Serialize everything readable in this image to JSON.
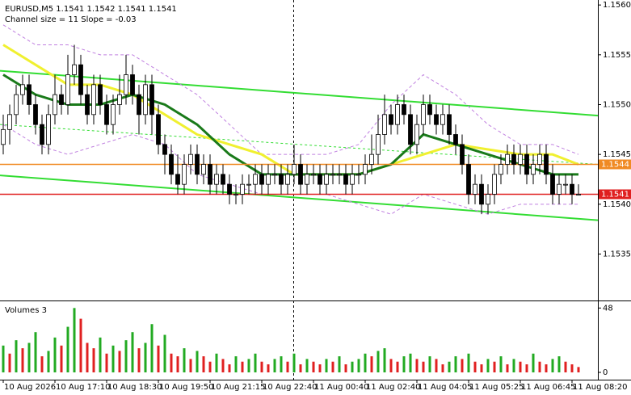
{
  "chart_data": {
    "type": "candlestick",
    "title": "EURUSD,M5  1.1541 1.1542 1.1541 1.1541",
    "subtitle": "Channel size = 11 Slope = -0.03",
    "categories": [
      "10 Aug 2026",
      null,
      null,
      null,
      null,
      null,
      null,
      null,
      "10 Aug 17:10",
      null,
      null,
      null,
      null,
      null,
      null,
      null,
      "10 Aug 18:30",
      null,
      null,
      null,
      null,
      null,
      null,
      null,
      "10 Aug 19:50",
      null,
      null,
      null,
      null,
      null,
      null,
      null,
      "10 Aug 21:15",
      null,
      null,
      null,
      null,
      null,
      null,
      null,
      "10 Aug 22:40",
      null,
      null,
      null,
      null,
      null,
      null,
      null,
      "11 Aug 00:40",
      null,
      null,
      null,
      null,
      null,
      null,
      null,
      "11 Aug 02:40",
      null,
      null,
      null,
      null,
      null,
      null,
      null,
      "11 Aug 04:05",
      null,
      null,
      null,
      null,
      null,
      null,
      null,
      "11 Aug 05:25",
      null,
      null,
      null,
      null,
      null,
      null,
      null,
      "11 Aug 06:45",
      null,
      null,
      null,
      null,
      null,
      null,
      null,
      "11 Aug 08:20",
      null
    ],
    "open": [
      1.1546,
      1.15475,
      1.1549,
      1.1551,
      1.1552,
      1.155,
      1.1548,
      1.1546,
      1.1549,
      1.1551,
      1.155,
      1.1553,
      1.1554,
      1.1551,
      1.1549,
      1.1552,
      1.155,
      1.1548,
      1.155,
      1.1551,
      1.1553,
      1.1551,
      1.1549,
      1.1552,
      1.1549,
      1.1546,
      1.1545,
      1.1543,
      1.1542,
      1.1544,
      1.1545,
      1.1543,
      1.1544,
      1.1542,
      1.1543,
      1.1542,
      1.1541,
      1.1541,
      1.1542,
      1.1542,
      1.1543,
      1.1542,
      1.1543,
      1.1543,
      1.1542,
      1.1543,
      1.1544,
      1.1542,
      1.1543,
      1.1543,
      1.1542,
      1.1543,
      1.1543,
      1.1543,
      1.1542,
      1.1543,
      1.1543,
      1.1544,
      1.1545,
      1.1547,
      1.1549,
      1.1548,
      1.155,
      1.1549,
      1.1546,
      1.1548,
      1.155,
      1.1549,
      1.1548,
      1.1549,
      1.1547,
      1.1546,
      1.1544,
      1.1541,
      1.1542,
      1.154,
      1.1541,
      1.1543,
      1.1544,
      1.1545,
      1.1544,
      1.1545,
      1.1543,
      1.1544,
      1.1545,
      1.1543,
      1.1541,
      1.1542,
      1.1542,
      1.1541
    ],
    "high": [
      1.1549,
      1.155,
      1.1552,
      1.1553,
      1.1553,
      1.1551,
      1.1549,
      1.155,
      1.1553,
      1.1552,
      1.1555,
      1.1556,
      1.1555,
      1.1552,
      1.1553,
      1.1553,
      1.1551,
      1.1551,
      1.1553,
      1.1555,
      1.1554,
      1.1552,
      1.1553,
      1.1553,
      1.155,
      1.1547,
      1.1546,
      1.1545,
      1.1545,
      1.1546,
      1.1546,
      1.1545,
      1.1545,
      1.1544,
      1.1544,
      1.1543,
      1.1542,
      1.1543,
      1.1543,
      1.1544,
      1.1544,
      1.1544,
      1.1544,
      1.1544,
      1.1544,
      1.1546,
      1.1545,
      1.1544,
      1.1544,
      1.1544,
      1.1544,
      1.1544,
      1.1544,
      1.1544,
      1.1544,
      1.1544,
      1.1545,
      1.1547,
      1.1549,
      1.1551,
      1.155,
      1.1551,
      1.1551,
      1.155,
      1.1549,
      1.1551,
      1.1551,
      1.155,
      1.155,
      1.155,
      1.1548,
      1.1547,
      1.1545,
      1.1543,
      1.1543,
      1.1542,
      1.1544,
      1.1545,
      1.1546,
      1.1546,
      1.1546,
      1.1546,
      1.1545,
      1.1546,
      1.1546,
      1.1544,
      1.1543,
      1.1543,
      1.1543,
      1.1542
    ],
    "low": [
      1.1545,
      1.1546,
      1.1548,
      1.155,
      1.1549,
      1.1547,
      1.1545,
      1.1545,
      1.1548,
      1.1549,
      1.1549,
      1.1552,
      1.155,
      1.1548,
      1.1548,
      1.1549,
      1.1547,
      1.1547,
      1.1549,
      1.155,
      1.155,
      1.1547,
      1.1548,
      1.1547,
      1.1545,
      1.1543,
      1.1542,
      1.1541,
      1.1541,
      1.1543,
      1.1542,
      1.1542,
      1.1541,
      1.1541,
      1.1541,
      1.154,
      1.154,
      1.154,
      1.1541,
      1.1541,
      1.1541,
      1.1541,
      1.1542,
      1.1541,
      1.1541,
      1.1542,
      1.1541,
      1.1541,
      1.1542,
      1.1541,
      1.1541,
      1.1542,
      1.1542,
      1.1541,
      1.1541,
      1.1542,
      1.1542,
      1.1543,
      1.1544,
      1.1546,
      1.1547,
      1.1547,
      1.1548,
      1.1545,
      1.1545,
      1.1547,
      1.1548,
      1.1547,
      1.1547,
      1.1546,
      1.1545,
      1.1543,
      1.154,
      1.154,
      1.1539,
      1.1539,
      1.154,
      1.1542,
      1.1543,
      1.1543,
      1.1543,
      1.1542,
      1.1542,
      1.1543,
      1.1542,
      1.154,
      1.154,
      1.1541,
      1.154,
      1.1541
    ],
    "close": [
      1.15475,
      1.1549,
      1.1551,
      1.1552,
      1.155,
      1.1548,
      1.1546,
      1.1549,
      1.1551,
      1.155,
      1.1553,
      1.1554,
      1.1551,
      1.1549,
      1.1552,
      1.155,
      1.1548,
      1.155,
      1.1551,
      1.1553,
      1.1551,
      1.1549,
      1.1552,
      1.1549,
      1.1546,
      1.1545,
      1.1543,
      1.1542,
      1.1544,
      1.1545,
      1.1543,
      1.1544,
      1.1542,
      1.1543,
      1.1542,
      1.1541,
      1.1541,
      1.1542,
      1.1542,
      1.1543,
      1.1542,
      1.1543,
      1.1543,
      1.1542,
      1.1543,
      1.1544,
      1.1542,
      1.1543,
      1.1543,
      1.1542,
      1.1543,
      1.1543,
      1.1543,
      1.1542,
      1.1543,
      1.1543,
      1.1544,
      1.1545,
      1.1547,
      1.1549,
      1.1548,
      1.155,
      1.1549,
      1.1546,
      1.1548,
      1.155,
      1.1549,
      1.1548,
      1.1549,
      1.1547,
      1.1546,
      1.1544,
      1.1541,
      1.1542,
      1.154,
      1.1541,
      1.1543,
      1.1544,
      1.1545,
      1.1544,
      1.1545,
      1.1543,
      1.1544,
      1.1545,
      1.1543,
      1.1541,
      1.1542,
      1.1542,
      1.1541,
      1.1541
    ],
    "ylim": [
      1.15305,
      1.15605
    ],
    "yticks": [
      1.1535,
      {
        "value": 1.154,
        "label": "1.1540"
      },
      1.1545,
      {
        "value": 1.155,
        "label": "1.1550"
      },
      1.1555,
      {
        "value": 1.156,
        "label": "1.1560"
      }
    ],
    "indicator_x": [
      0,
      5,
      10,
      15,
      20,
      25,
      30,
      35,
      40,
      45,
      50,
      55,
      60,
      65,
      70,
      75,
      80,
      85,
      89
    ],
    "indicators": [
      {
        "color": "#c080e0",
        "dashed": true,
        "values": [
          1.1558,
          1.1556,
          1.1556,
          1.1555,
          1.1555,
          1.1553,
          1.1551,
          1.1548,
          1.1545,
          1.1545,
          1.1545,
          1.1546,
          1.155,
          1.1553,
          1.1551,
          1.1548,
          1.1546,
          1.1546,
          1.1545
        ]
      },
      {
        "color": "#c080e0",
        "dashed": true,
        "values": [
          1.1548,
          1.1546,
          1.1545,
          1.1546,
          1.1547,
          1.1546,
          1.1543,
          1.1542,
          1.1541,
          1.1541,
          1.1541,
          1.154,
          1.1539,
          1.1541,
          1.154,
          1.1539,
          1.154,
          1.154,
          1.154
        ]
      },
      {
        "color": "#f0f030",
        "width": 3,
        "values": [
          1.1556,
          1.1554,
          1.1552,
          1.1552,
          1.1551,
          1.1549,
          1.1547,
          1.1546,
          1.1545,
          1.1543,
          1.1543,
          1.1543,
          1.1544,
          1.1545,
          1.1546,
          1.15455,
          1.1545,
          1.1545,
          1.1544
        ]
      },
      {
        "color": "#1a7a1a",
        "width": 3,
        "values": [
          1.1553,
          1.1551,
          1.155,
          1.155,
          1.1551,
          1.155,
          1.1548,
          1.1545,
          1.1543,
          1.1543,
          1.1543,
          1.1543,
          1.1544,
          1.1547,
          1.1546,
          1.1545,
          1.1544,
          1.1543,
          1.1543
        ]
      }
    ],
    "channel": [
      {
        "color": "#33dd33",
        "width": 2,
        "values": [
          1.15534,
          1.15489
        ]
      },
      {
        "color": "#33dd33",
        "width": 1,
        "dashed": true,
        "values": [
          1.1548,
          1.1544
        ]
      },
      {
        "color": "#33dd33",
        "width": 2,
        "values": [
          1.15429,
          1.15384
        ]
      }
    ],
    "hlines": [
      {
        "value": 1.1544,
        "color": "#f08a24"
      },
      {
        "value": 1.1541,
        "color": "#e02020"
      }
    ],
    "volume": {
      "title": "Volumes 3",
      "values": [
        20,
        14,
        24,
        18,
        22,
        30,
        12,
        16,
        26,
        20,
        34,
        48,
        40,
        22,
        18,
        26,
        14,
        20,
        16,
        24,
        30,
        18,
        22,
        36,
        20,
        28,
        14,
        12,
        18,
        10,
        16,
        12,
        8,
        14,
        10,
        6,
        12,
        8,
        10,
        14,
        8,
        6,
        10,
        12,
        8,
        14,
        6,
        10,
        8,
        6,
        10,
        8,
        12,
        6,
        8,
        10,
        14,
        12,
        16,
        18,
        10,
        8,
        12,
        14,
        10,
        8,
        12,
        10,
        6,
        8,
        12,
        10,
        14,
        8,
        6,
        10,
        8,
        12,
        6,
        10,
        8,
        6,
        14,
        8,
        6,
        10,
        12,
        8,
        6,
        4
      ],
      "ylim": [
        0,
        50
      ],
      "yticks": [
        0,
        48
      ],
      "up_color": "#22aa22",
      "down_color": "#e02020"
    }
  }
}
